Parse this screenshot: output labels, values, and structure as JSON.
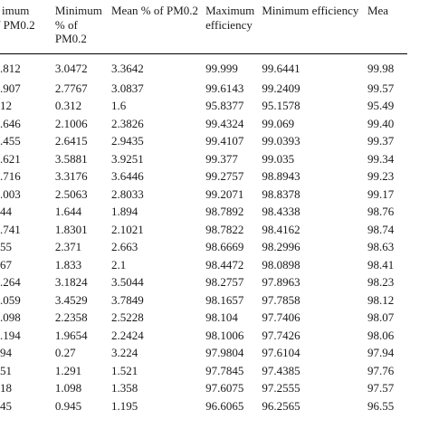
{
  "table": {
    "headers": [
      [
        "imum",
        "f PM0.2"
      ],
      [
        "Minimum",
        "% of",
        "PM0.2"
      ],
      [
        "Mean % of PM0.2"
      ],
      [
        "Maximum",
        "efficiency"
      ],
      [
        "Minimum efficiency"
      ],
      [
        "Mea"
      ]
    ],
    "rows": [
      [
        ".812",
        "3.0472",
        "3.3642",
        "99.999",
        "99.6441",
        "99.98"
      ],
      [
        ".907",
        "2.7767",
        "3.0837",
        "99.6143",
        "99.2409",
        "99.57"
      ],
      [
        "12",
        "0.312",
        "1.6",
        "95.8377",
        "95.1578",
        "95.49"
      ],
      [
        ".646",
        "2.1006",
        "2.3826",
        "99.4324",
        "99.069",
        "99.40"
      ],
      [
        ".455",
        "2.6415",
        "2.9435",
        "99.4107",
        "99.0393",
        "99.37"
      ],
      [
        ".621",
        "3.5881",
        "3.9251",
        "99.377",
        "99.035",
        "99.34"
      ],
      [
        ".716",
        "3.3176",
        "3.6446",
        "99.2757",
        "98.8943",
        "99.23"
      ],
      [
        ".003",
        "2.5063",
        "2.8033",
        "99.2071",
        "98.8378",
        "99.17"
      ],
      [
        "44",
        "1.644",
        "1.894",
        "98.7892",
        "98.4338",
        "98.76"
      ],
      [
        ".741",
        "1.8301",
        "2.1021",
        "98.7822",
        "98.4162",
        "98.74"
      ],
      [
        "55",
        "2.371",
        "2.663",
        "98.6669",
        "98.2996",
        "98.63"
      ],
      [
        "67",
        "1.833",
        "2.1",
        "98.4472",
        "98.0898",
        "98.41"
      ],
      [
        ".264",
        "3.1824",
        "3.5044",
        "98.2757",
        "97.8963",
        "98.23"
      ],
      [
        ".059",
        "3.4529",
        "3.7849",
        "98.1657",
        "97.7858",
        "98.12"
      ],
      [
        ".098",
        "2.2358",
        "2.5228",
        "98.104",
        "97.7406",
        "98.07"
      ],
      [
        ".194",
        "1.9654",
        "2.2424",
        "98.1006",
        "97.7426",
        "98.06"
      ],
      [
        "94",
        "0.27",
        "3.224",
        "97.9804",
        "97.6104",
        "97.94"
      ],
      [
        "51",
        "1.291",
        "1.521",
        "97.7845",
        "97.4385",
        "97.76"
      ],
      [
        "18",
        "1.098",
        "1.358",
        "97.6075",
        "97.2555",
        "97.57"
      ],
      [
        "45",
        "0.945",
        "1.195",
        "96.6065",
        "96.2565",
        "96.55"
      ]
    ]
  }
}
